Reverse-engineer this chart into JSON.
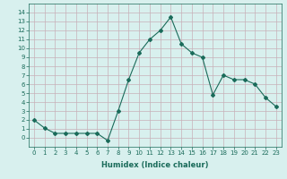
{
  "x": [
    0,
    1,
    2,
    3,
    4,
    5,
    6,
    7,
    8,
    9,
    10,
    11,
    12,
    13,
    14,
    15,
    16,
    17,
    18,
    19,
    20,
    21,
    22,
    23
  ],
  "y": [
    2.0,
    1.1,
    0.5,
    0.5,
    0.5,
    0.5,
    0.5,
    -0.3,
    3.0,
    6.5,
    9.5,
    11.0,
    12.0,
    13.5,
    10.5,
    9.5,
    9.0,
    4.8,
    7.0,
    6.5,
    6.5,
    6.0,
    4.5,
    3.5
  ],
  "line_color": "#1a6b5a",
  "marker": "D",
  "marker_size": 2,
  "bg_color": "#d8f0ee",
  "grid_color": "#c8b0b8",
  "xlabel": "Humidex (Indice chaleur)",
  "xlim": [
    -0.5,
    23.5
  ],
  "ylim": [
    -1,
    15
  ],
  "yticks": [
    0,
    1,
    2,
    3,
    4,
    5,
    6,
    7,
    8,
    9,
    10,
    11,
    12,
    13,
    14
  ],
  "xtick_labels": [
    "0",
    "1",
    "2",
    "3",
    "4",
    "5",
    "6",
    "7",
    "8",
    "9",
    "10",
    "11",
    "12",
    "13",
    "14",
    "15",
    "16",
    "17",
    "18",
    "19",
    "20",
    "21",
    "22",
    "23"
  ],
  "font_color": "#1a6b5a",
  "tick_fontsize": 5,
  "xlabel_fontsize": 6,
  "linewidth": 0.8
}
